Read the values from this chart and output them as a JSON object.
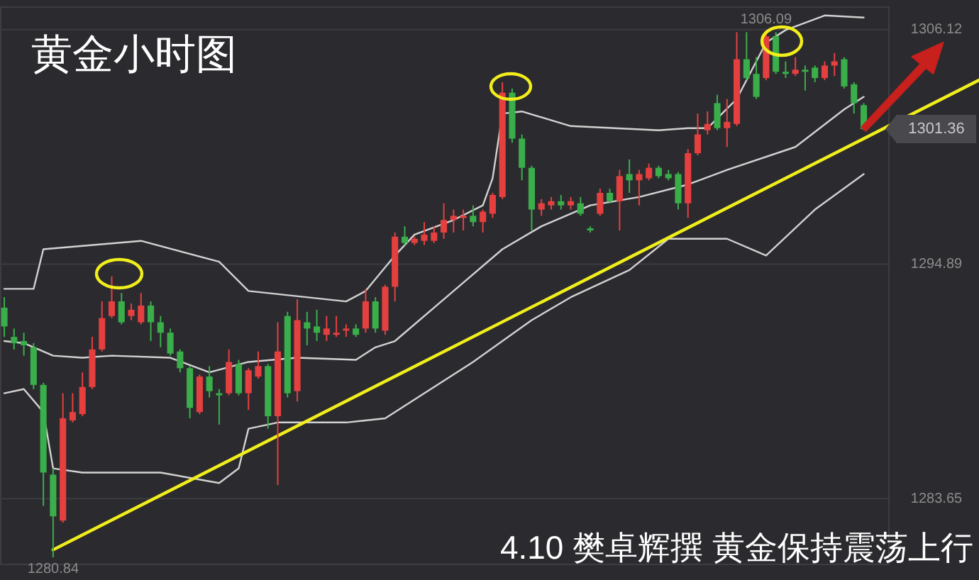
{
  "chart_data": {
    "type": "candlestick",
    "title": "黄金小时图",
    "categories": [
      null,
      null,
      null,
      null,
      null,
      null,
      null,
      null,
      null,
      null,
      null,
      null,
      null,
      null,
      null,
      null,
      null,
      null,
      null,
      null,
      null,
      null,
      null,
      null,
      null,
      null,
      null,
      null,
      null,
      null,
      null,
      null,
      null,
      null,
      null,
      null,
      null,
      null,
      null,
      null,
      null,
      null,
      null,
      null,
      null,
      null,
      null,
      null,
      null,
      null,
      null,
      null,
      null,
      null,
      null,
      null,
      null,
      null,
      null,
      null,
      null,
      null,
      null,
      null,
      null,
      null,
      null,
      null,
      null,
      null,
      null,
      null,
      null,
      null,
      null,
      null,
      null,
      null,
      null,
      null,
      null,
      null,
      null,
      null,
      null,
      null,
      null,
      null,
      null
    ],
    "ohlc": [
      [
        1292.8,
        1293.3,
        1291.4,
        1291.9
      ],
      [
        1291.4,
        1291.8,
        1290.8,
        1291.1
      ],
      [
        1291.2,
        1291.6,
        1290.5,
        1291.0
      ],
      [
        1290.9,
        1291.1,
        1288.9,
        1289.1
      ],
      [
        1289.1,
        1289.2,
        1283.3,
        1284.9
      ],
      [
        1284.8,
        1285.1,
        1280.84,
        1282.8
      ],
      [
        1282.6,
        1288.7,
        1282.5,
        1287.5
      ],
      [
        1287.4,
        1288.7,
        1287.3,
        1287.8
      ],
      [
        1287.7,
        1289.7,
        1287.6,
        1289.0
      ],
      [
        1289.0,
        1291.4,
        1288.9,
        1290.8
      ],
      [
        1290.8,
        1293.1,
        1290.7,
        1292.3
      ],
      [
        1292.4,
        1294.3,
        1292.3,
        1293.1
      ],
      [
        1293.1,
        1293.5,
        1292.0,
        1292.1
      ],
      [
        1292.4,
        1293.0,
        1292.2,
        1292.7
      ],
      [
        1292.1,
        1293.5,
        1292.0,
        1292.9
      ],
      [
        1292.9,
        1293.1,
        1291.2,
        1292.1
      ],
      [
        1292.1,
        1292.4,
        1290.9,
        1291.6
      ],
      [
        1291.6,
        1291.8,
        1290.5,
        1290.6
      ],
      [
        1290.7,
        1290.8,
        1289.7,
        1289.9
      ],
      [
        1289.9,
        1290.0,
        1287.5,
        1288.0
      ],
      [
        1287.8,
        1289.6,
        1287.7,
        1289.5
      ],
      [
        1289.5,
        1290.0,
        1288.5,
        1288.8
      ],
      [
        1288.7,
        1288.9,
        1287.2,
        1288.6
      ],
      [
        1288.7,
        1290.8,
        1288.6,
        1290.2
      ],
      [
        1290.1,
        1290.3,
        1288.6,
        1288.7
      ],
      [
        1288.7,
        1289.9,
        1287.9,
        1289.8
      ],
      [
        1289.5,
        1290.7,
        1289.4,
        1290.0
      ],
      [
        1290.0,
        1290.1,
        1287.0,
        1287.6
      ],
      [
        1287.6,
        1292.1,
        1284.3,
        1290.7
      ],
      [
        1292.4,
        1292.6,
        1288.5,
        1288.7
      ],
      [
        1288.8,
        1293.2,
        1288.3,
        1292.2
      ],
      [
        1292.1,
        1292.6,
        1291.0,
        1291.8
      ],
      [
        1291.9,
        1292.7,
        1291.2,
        1291.6
      ],
      [
        1291.5,
        1292.4,
        1291.2,
        1291.8
      ],
      [
        1291.5,
        1292.4,
        1291.4,
        1291.6
      ],
      [
        1291.7,
        1292.0,
        1291.4,
        1291.8
      ],
      [
        1291.8,
        1292.0,
        1291.4,
        1291.5
      ],
      [
        1291.8,
        1293.7,
        1291.6,
        1293.1
      ],
      [
        1293.1,
        1293.3,
        1291.6,
        1291.8
      ],
      [
        1291.7,
        1293.9,
        1291.5,
        1293.8
      ],
      [
        1293.8,
        1296.4,
        1293.1,
        1296.2
      ],
      [
        1296.2,
        1296.7,
        1295.8,
        1295.9
      ],
      [
        1295.9,
        1296.2,
        1295.8,
        1296.1
      ],
      [
        1296.0,
        1296.9,
        1295.8,
        1296.3
      ],
      [
        1296.0,
        1296.7,
        1295.9,
        1296.4
      ],
      [
        1296.4,
        1297.8,
        1296.1,
        1297.0
      ],
      [
        1297.0,
        1297.5,
        1296.4,
        1297.2
      ],
      [
        1297.1,
        1297.5,
        1296.5,
        1297.2
      ],
      [
        1297.2,
        1297.7,
        1296.7,
        1296.9
      ],
      [
        1296.9,
        1297.5,
        1296.4,
        1297.4
      ],
      [
        1297.3,
        1298.3,
        1297.1,
        1298.2
      ],
      [
        1298.1,
        1303.6,
        1298.0,
        1303.1
      ],
      [
        1303.1,
        1303.3,
        1300.7,
        1300.9
      ],
      [
        1300.9,
        1301.1,
        1298.9,
        1299.5
      ],
      [
        1299.5,
        1299.6,
        1296.5,
        1297.5
      ],
      [
        1297.5,
        1298.0,
        1297.2,
        1297.8
      ],
      [
        1297.7,
        1298.1,
        1297.5,
        1297.9
      ],
      [
        1297.9,
        1298.2,
        1297.5,
        1297.7
      ],
      [
        1297.7,
        1298.1,
        1297.5,
        1297.9
      ],
      [
        1297.8,
        1298.1,
        1297.2,
        1297.3
      ],
      [
        1296.6,
        1296.7,
        1296.4,
        1296.5
      ],
      [
        1297.3,
        1298.5,
        1297.2,
        1298.3
      ],
      [
        1298.3,
        1298.5,
        1297.8,
        1297.9
      ],
      [
        1297.9,
        1299.4,
        1296.5,
        1299.1
      ],
      [
        1299.2,
        1299.9,
        1298.3,
        1298.9
      ],
      [
        1298.9,
        1299.4,
        1297.7,
        1299.2
      ],
      [
        1299.0,
        1299.7,
        1298.9,
        1299.5
      ],
      [
        1299.5,
        1299.6,
        1299.0,
        1299.1
      ],
      [
        1299.2,
        1299.4,
        1298.9,
        1299.0
      ],
      [
        1299.2,
        1299.3,
        1297.5,
        1297.8
      ],
      [
        1297.8,
        1300.4,
        1297.1,
        1300.2
      ],
      [
        1300.2,
        1302.1,
        1300.1,
        1301.1
      ],
      [
        1301.3,
        1302.2,
        1301.1,
        1301.6
      ],
      [
        1302.6,
        1303.0,
        1301.3,
        1301.4
      ],
      [
        1301.4,
        1302.8,
        1300.5,
        1301.7
      ],
      [
        1301.6,
        1306.0,
        1301.5,
        1304.7
      ],
      [
        1304.7,
        1306.0,
        1303.7,
        1303.8
      ],
      [
        1304.0,
        1304.8,
        1302.8,
        1302.9
      ],
      [
        1303.8,
        1306.09,
        1303.7,
        1305.8
      ],
      [
        1305.8,
        1306.0,
        1304.0,
        1304.1
      ],
      [
        1304.1,
        1304.6,
        1303.8,
        1304.0
      ],
      [
        1304.0,
        1304.8,
        1303.9,
        1304.2
      ],
      [
        1304.2,
        1304.4,
        1303.2,
        1304.1
      ],
      [
        1304.3,
        1304.4,
        1303.6,
        1303.8
      ],
      [
        1303.8,
        1304.6,
        1303.7,
        1304.4
      ],
      [
        1304.4,
        1305.0,
        1303.9,
        1304.6
      ],
      [
        1304.7,
        1304.8,
        1303.3,
        1303.4
      ],
      [
        1303.5,
        1303.6,
        1302.1,
        1302.6
      ],
      [
        1302.5,
        1302.6,
        1301.3,
        1301.36
      ]
    ],
    "colors": [
      "#3aae4a",
      "#3aae4a",
      "#3aae4a",
      "#3aae4a",
      "#3aae4a",
      "#3aae4a",
      "#e5403f",
      "#e5403f",
      "#e5403f",
      "#e5403f",
      "#e5403f",
      "#e5403f",
      "#3aae4a",
      "#e5403f",
      "#e5403f",
      "#3aae4a",
      "#3aae4a",
      "#3aae4a",
      "#3aae4a",
      "#3aae4a",
      "#e5403f",
      "#3aae4a",
      "#3aae4a",
      "#e5403f",
      "#3aae4a",
      "#e5403f",
      "#e5403f",
      "#3aae4a",
      "#e5403f",
      "#3aae4a",
      "#e5403f",
      "#3aae4a",
      "#3aae4a",
      "#e5403f",
      "#e5403f",
      "#e5403f",
      "#3aae4a",
      "#e5403f",
      "#3aae4a",
      "#e5403f",
      "#e5403f",
      "#3aae4a",
      "#e5403f",
      "#e5403f",
      "#e5403f",
      "#e5403f",
      "#e5403f",
      "#e5403f",
      "#3aae4a",
      "#e5403f",
      "#e5403f",
      "#e5403f",
      "#3aae4a",
      "#3aae4a",
      "#3aae4a",
      "#e5403f",
      "#e5403f",
      "#3aae4a",
      "#e5403f",
      "#3aae4a",
      "#3aae4a",
      "#e5403f",
      "#3aae4a",
      "#e5403f",
      "#3aae4a",
      "#e5403f",
      "#e5403f",
      "#3aae4a",
      "#3aae4a",
      "#3aae4a",
      "#e5403f",
      "#e5403f",
      "#e5403f",
      "#3aae4a",
      "#e5403f",
      "#e5403f",
      "#3aae4a",
      "#3aae4a",
      "#e5403f",
      "#3aae4a",
      "#3aae4a",
      "#e5403f",
      "#3aae4a",
      "#3aae4a",
      "#e5403f",
      "#e5403f",
      "#3aae4a",
      "#3aae4a",
      "#3aae4a"
    ],
    "series": [
      {
        "type": "line",
        "color": "#d2d2d2",
        "values": [
          1293.7,
          null,
          null,
          1293.7,
          1295.6,
          null,
          null,
          null,
          null,
          null,
          null,
          null,
          null,
          null,
          1296.0,
          null,
          null,
          null,
          null,
          null,
          null,
          null,
          1295.0,
          null,
          null,
          1293.6,
          null,
          null,
          null,
          null,
          null,
          null,
          null,
          null,
          null,
          1293.1,
          null,
          1293.6,
          null,
          null,
          1295.3,
          null,
          1296.3,
          null,
          null,
          null,
          1297.0,
          null,
          null,
          1297.7,
          1299.0,
          1302.1,
          null,
          1302.2,
          null,
          null,
          null,
          null,
          1301.5,
          null,
          null,
          null,
          null,
          null,
          null,
          null,
          null,
          1301.3,
          null,
          null,
          1301.4,
          null,
          1301.4,
          null,
          null,
          1302.8,
          null,
          null,
          1305.5,
          null,
          1306.1,
          null,
          null,
          null,
          1306.8,
          null,
          null,
          null,
          1306.7
        ]
      },
      {
        "type": "line",
        "color": "#d2d2d2",
        "values": [
          1291.2,
          null,
          1291.1,
          null,
          null,
          1290.5,
          null,
          null,
          1290.4,
          null,
          null,
          1290.5,
          null,
          null,
          null,
          null,
          null,
          1290.4,
          null,
          null,
          null,
          1289.7,
          null,
          null,
          null,
          1290.2,
          null,
          null,
          null,
          null,
          1290.4,
          null,
          null,
          null,
          null,
          null,
          1290.3,
          null,
          1290.9,
          null,
          1291.2,
          null,
          null,
          null,
          null,
          null,
          1293.6,
          null,
          null,
          null,
          null,
          1295.6,
          null,
          null,
          null,
          1296.7,
          null,
          null,
          null,
          null,
          1297.7,
          null,
          null,
          null,
          null,
          1298.1,
          null,
          null,
          null,
          null,
          1298.7,
          null,
          null,
          null,
          1299.4,
          null,
          null,
          null,
          null,
          null,
          null,
          1300.5,
          null,
          null,
          null,
          null,
          1302.3,
          null,
          1302.9
        ]
      },
      {
        "type": "line",
        "color": "#d2d2d2",
        "values": [
          1288.7,
          null,
          1288.9,
          null,
          1287.8,
          1285.1,
          null,
          null,
          1284.9,
          null,
          null,
          null,
          null,
          null,
          null,
          null,
          1284.9,
          null,
          null,
          null,
          null,
          null,
          1284.4,
          null,
          1285.1,
          1287.0,
          null,
          null,
          1287.3,
          null,
          null,
          null,
          null,
          null,
          null,
          1287.3,
          null,
          null,
          null,
          1287.5,
          null,
          null,
          null,
          null,
          null,
          null,
          null,
          null,
          1290.2,
          null,
          null,
          null,
          null,
          null,
          1292.2,
          null,
          null,
          null,
          1293.3,
          null,
          null,
          null,
          null,
          null,
          1294.6,
          null,
          null,
          null,
          1296.1,
          null,
          null,
          null,
          null,
          null,
          1296.1,
          null,
          null,
          null,
          1295.3,
          null,
          null,
          null,
          null,
          1297.5,
          null,
          null,
          null,
          null,
          1299.2
        ]
      },
      {
        "type": "line",
        "color": "#f2ee1c",
        "values": [
          null,
          null,
          null,
          null,
          null,
          1281.2,
          null,
          null,
          null,
          null,
          null,
          null,
          null,
          null,
          null,
          null,
          null,
          null,
          null,
          null,
          null,
          null,
          null,
          null,
          null,
          null,
          null,
          null,
          null,
          null,
          null,
          null,
          null,
          null,
          null,
          null,
          null,
          null,
          null,
          null,
          null,
          null,
          null,
          null,
          null,
          null,
          null,
          null,
          null,
          null,
          null,
          null,
          null,
          null,
          null,
          null,
          null,
          null,
          null,
          null,
          null,
          null,
          null,
          null,
          null,
          null,
          null,
          null,
          null,
          null,
          null,
          null,
          null,
          null,
          null,
          null,
          null,
          null,
          null,
          null,
          null,
          null,
          null,
          null,
          null,
          null,
          null,
          null,
          1300.9
        ]
      }
    ],
    "ylim": [
      1280.5,
      1307.2
    ],
    "yticks": [
      1306.12,
      1294.89,
      1283.65
    ],
    "grid": "y",
    "annotations": [
      "4.10 樊卓辉撰 黄金保持震荡上行",
      {
        "text": "1306.09",
        "y": 1306.09
      },
      {
        "text": "1280.84",
        "y": 1280.84
      },
      "1301.36"
    ]
  }
}
